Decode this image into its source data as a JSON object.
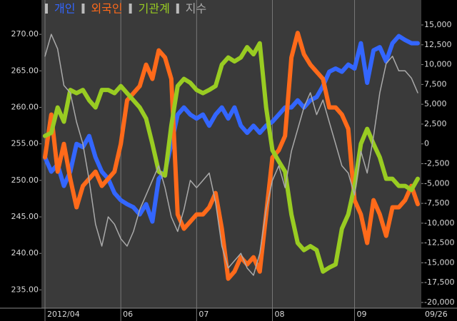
{
  "chart_data": {
    "type": "line",
    "categories": [
      "2012/04",
      null,
      null,
      null,
      null,
      null,
      null,
      null,
      null,
      null,
      null,
      null,
      "06",
      null,
      null,
      null,
      null,
      null,
      null,
      null,
      null,
      null,
      null,
      null,
      "07",
      null,
      null,
      null,
      null,
      null,
      null,
      null,
      null,
      null,
      null,
      null,
      "08",
      null,
      null,
      null,
      null,
      null,
      null,
      null,
      null,
      null,
      null,
      null,
      null,
      "09",
      null,
      null,
      null,
      null,
      null,
      null,
      null,
      null,
      null,
      "09/26"
    ],
    "ylim": [
      232.5,
      274.7
    ],
    "yticks": [
      {
        "value": 235,
        "label": "235.00"
      },
      {
        "value": 240,
        "label": "240.00"
      },
      {
        "value": 245,
        "label": "245.00"
      },
      {
        "value": 250,
        "label": "250.00"
      },
      {
        "value": 255,
        "label": "255.00"
      },
      {
        "value": 260,
        "label": "260.00"
      },
      {
        "value": 265,
        "label": "265.00"
      },
      {
        "value": 270,
        "label": "270.00"
      }
    ],
    "y2lim": [
      -20720,
      18150
    ],
    "y2ticks": [
      {
        "value": -20000,
        "label": "-20,000"
      },
      {
        "value": -17500,
        "label": "-17,500"
      },
      {
        "value": -15000,
        "label": "-15,000"
      },
      {
        "value": -12500,
        "label": "-12,500"
      },
      {
        "value": -10000,
        "label": "-10,000"
      },
      {
        "value": -7500,
        "label": "-7,500"
      },
      {
        "value": -5000,
        "label": "-5,000"
      },
      {
        "value": -2500,
        "label": "-2,500"
      },
      0,
      {
        "value": 2500,
        "label": "2,500"
      },
      {
        "value": 5000,
        "label": "5,000"
      },
      {
        "value": 7500,
        "label": "7,500"
      },
      {
        "value": 10000,
        "label": "10,000"
      },
      {
        "value": 12500,
        "label": "12,500"
      },
      {
        "value": 15000,
        "label": "15,000"
      }
    ],
    "series": [
      {
        "name": "개인",
        "color": "#3366ff",
        "axis": "y2",
        "values": [
          -1700,
          -3500,
          -2600,
          -5300,
          -3500,
          0,
          -400,
          1000,
          -1700,
          -3500,
          -4400,
          -6200,
          -7100,
          -7600,
          -8000,
          -8900,
          -7600,
          -9800,
          -4400,
          -3500,
          0,
          3700,
          4600,
          3700,
          3200,
          3700,
          2300,
          3700,
          4600,
          3200,
          4600,
          2300,
          1400,
          2300,
          1400,
          2300,
          2800,
          3700,
          4600,
          4600,
          5500,
          4600,
          5500,
          5900,
          7300,
          9100,
          9500,
          9100,
          10000,
          9500,
          12700,
          7700,
          11800,
          12200,
          10400,
          12700,
          13600,
          13100,
          12700,
          12700
        ]
      },
      {
        "name": "외국인",
        "color": "#ff6a1a",
        "axis": "y2",
        "values": [
          -1700,
          3700,
          -3500,
          0,
          -4400,
          -8000,
          -5300,
          -4400,
          -3500,
          -5300,
          -4400,
          -3500,
          0,
          5500,
          6400,
          7300,
          10000,
          8200,
          11800,
          10900,
          8200,
          -8900,
          -10700,
          -9800,
          -8900,
          -8900,
          -8000,
          -6200,
          -10700,
          -17000,
          -16100,
          -14300,
          -15200,
          -14300,
          -16100,
          -8900,
          -1700,
          -800,
          1000,
          10900,
          14000,
          11300,
          10000,
          9100,
          8200,
          4600,
          4600,
          3700,
          1900,
          -7100,
          -8900,
          -12500,
          -7100,
          -8900,
          -11600,
          -8000,
          -8000,
          -7100,
          -5300,
          -7600
        ]
      },
      {
        "name": "기관계",
        "color": "#99cc22",
        "axis": "y2",
        "values": [
          1000,
          1400,
          4600,
          2800,
          6800,
          6400,
          6800,
          5500,
          4600,
          6800,
          6800,
          6400,
          7300,
          6400,
          5500,
          4600,
          3200,
          0,
          -3500,
          -4000,
          2300,
          7300,
          8200,
          7700,
          6800,
          6400,
          6800,
          7300,
          10000,
          10900,
          10400,
          10900,
          12200,
          11300,
          12700,
          4600,
          -800,
          -2200,
          -3500,
          -8900,
          -12500,
          -13400,
          -12900,
          -13400,
          -16100,
          -15600,
          -15200,
          -10700,
          -8900,
          -5300,
          0,
          1900,
          0,
          -1700,
          -4400,
          -4400,
          -5300,
          -5300,
          -5800,
          -4400
        ]
      },
      {
        "name": "지수",
        "color": "#aaaaaa",
        "axis": "y",
        "values": [
          267,
          270,
          268,
          263,
          262,
          258,
          255,
          250,
          244,
          241,
          245,
          244,
          242,
          241,
          243,
          246,
          248,
          250,
          252,
          249,
          245,
          243,
          246,
          250,
          249,
          250,
          251,
          247,
          241,
          238,
          239,
          240,
          238,
          237,
          240,
          246,
          250,
          252,
          249,
          254,
          257,
          260,
          262,
          259,
          261,
          258,
          255,
          252,
          251,
          248,
          254,
          251,
          256,
          262,
          266,
          267,
          265,
          265,
          264,
          262
        ]
      }
    ]
  }
}
